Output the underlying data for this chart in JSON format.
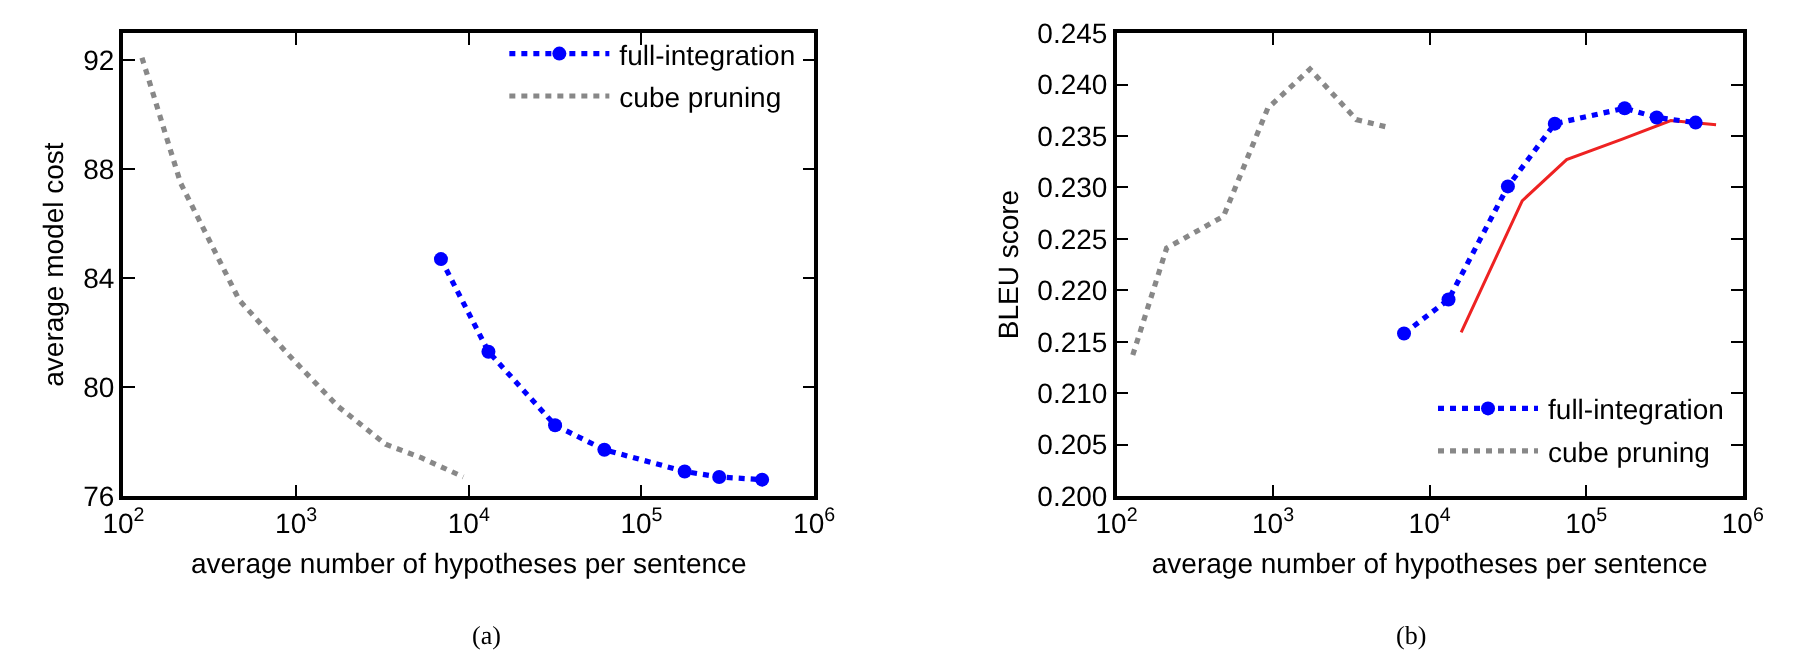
{
  "chart_data": [
    {
      "type": "line",
      "xlabel": "average number of hypotheses per sentence",
      "ylabel": "average model cost",
      "log": "x",
      "xlim": [
        100,
        1000000
      ],
      "xticks": [
        {
          "value": 100,
          "label": "10$^{2}$"
        },
        {
          "value": 1000,
          "label": "10$^{3}$"
        },
        {
          "value": 10000,
          "label": "10$^{4}$"
        },
        {
          "value": 100000,
          "label": "10$^{5}$"
        },
        {
          "value": 1000000,
          "label": "10$^{6}$"
        }
      ],
      "ylim": [
        76,
        93
      ],
      "yticks": [
        76,
        80,
        84,
        88,
        92
      ],
      "grid": false,
      "legend": "top right",
      "annotations": [
        "(a)"
      ],
      "series": [
        {
          "name": "full-integration",
          "color": "#0000ff",
          "line_style": "dotted",
          "marker": "circle",
          "x": [
            6900,
            13000,
            31600,
            61000,
            178000,
            282000,
            500000
          ],
          "values": [
            84.7,
            81.3,
            78.6,
            77.7,
            76.9,
            76.7,
            76.6
          ]
        },
        {
          "name": "cube pruning",
          "color": "#888888",
          "line_style": "dotted",
          "marker": "none",
          "x": [
            128,
            214,
            468,
            900,
            1740,
            3300,
            5340,
            9300
          ],
          "values": [
            92.1,
            87.5,
            83.2,
            81.2,
            79.3,
            77.9,
            77.4,
            76.7
          ]
        }
      ]
    },
    {
      "type": "line",
      "xlabel": "average number of hypotheses per sentence",
      "ylabel": "BLEU score",
      "log": "x",
      "xlim": [
        100,
        1000000
      ],
      "xticks": [
        {
          "value": 100,
          "label": "10$^{2}$"
        },
        {
          "value": 1000,
          "label": "10$^{3}$"
        },
        {
          "value": 10000,
          "label": "10$^{4}$"
        },
        {
          "value": 100000,
          "label": "10$^{5}$"
        },
        {
          "value": 1000000,
          "label": "10$^{6}$"
        }
      ],
      "ylim": [
        0.2,
        0.245
      ],
      "yticks": [
        {
          "value": 0.2,
          "label": "0.200"
        },
        0.205,
        {
          "value": 0.21,
          "label": "0.210"
        },
        0.215,
        {
          "value": 0.22,
          "label": "0.220"
        },
        0.225,
        {
          "value": 0.23,
          "label": "0.230"
        },
        0.235,
        {
          "value": 0.24,
          "label": "0.240"
        },
        0.245
      ],
      "grid": false,
      "legend": "bottom right",
      "annotations": [
        "(b)"
      ],
      "series": [
        {
          "color": "#ee2222",
          "line_style": "solid",
          "marker": "none",
          "x": [
            15900,
            39000,
            75000,
            170000,
            347000,
            675000
          ],
          "values": [
            0.2159,
            0.2287,
            0.2327,
            0.2347,
            0.2365,
            0.2361
          ]
        },
        {
          "name": "full-integration",
          "color": "#0000ff",
          "line_style": "dotted",
          "marker": "circle",
          "x": [
            6860,
            13200,
            31600,
            63000,
            176000,
            282000,
            500000
          ],
          "values": [
            0.2158,
            0.2191,
            0.2301,
            0.2362,
            0.2377,
            0.2368,
            0.2363
          ]
        },
        {
          "name": "cube pruning",
          "color": "#888888",
          "line_style": "dotted",
          "marker": "none",
          "x": [
            127,
            209,
            483,
            925,
            1720,
            3400,
            5250
          ],
          "values": [
            0.2137,
            0.2241,
            0.2272,
            0.2377,
            0.2415,
            0.2366,
            0.2359
          ]
        }
      ]
    }
  ]
}
